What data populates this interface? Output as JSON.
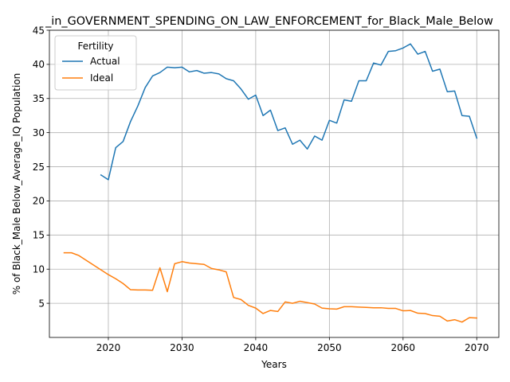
{
  "chart_data": {
    "type": "line",
    "title": "_in_GOVERNMENT_SPENDING_ON_LAW_ENFORCEMENT_for_Black_Male_Below",
    "xlabel": "Years",
    "ylabel": "% of Black_Male Below_Average_IQ Population",
    "xlim": [
      2012,
      2073
    ],
    "ylim": [
      0,
      45
    ],
    "x_ticks": [
      2020,
      2030,
      2040,
      2050,
      2060,
      2070
    ],
    "y_ticks": [
      5,
      10,
      15,
      20,
      25,
      30,
      35,
      40,
      45
    ],
    "grid": true,
    "legend": {
      "title": "Fertility",
      "placement": "upper-left"
    },
    "series": [
      {
        "name": "Actual",
        "color": "#1f77b4",
        "x": [
          2019,
          2020,
          2021,
          2022,
          2023,
          2024,
          2025,
          2026,
          2027,
          2028,
          2029,
          2030,
          2031,
          2032,
          2033,
          2034,
          2035,
          2036,
          2037,
          2038,
          2039,
          2040,
          2041,
          2042,
          2043,
          2044,
          2045,
          2046,
          2047,
          2048,
          2049,
          2050,
          2051,
          2052,
          2053,
          2054,
          2055,
          2056,
          2057,
          2058,
          2059,
          2060,
          2061,
          2062,
          2063,
          2064,
          2065,
          2066,
          2067,
          2068,
          2069,
          2070
        ],
        "values": [
          23.8,
          23.1,
          27.8,
          28.7,
          31.6,
          33.9,
          36.6,
          38.3,
          38.8,
          39.6,
          39.5,
          39.6,
          38.9,
          39.1,
          38.7,
          38.8,
          38.6,
          37.9,
          37.6,
          36.4,
          34.9,
          35.5,
          32.5,
          33.3,
          30.3,
          30.7,
          28.3,
          28.9,
          27.6,
          29.5,
          28.9,
          31.8,
          31.4,
          34.8,
          34.6,
          37.6,
          37.6,
          40.2,
          39.9,
          41.9,
          42.0,
          42.4,
          43.0,
          41.5,
          41.9,
          39.0,
          39.3,
          36.0,
          36.1,
          32.5,
          32.4,
          29.2
        ]
      },
      {
        "name": "Ideal",
        "color": "#ff7f0e",
        "x": [
          2014,
          2015,
          2016,
          2017,
          2018,
          2019,
          2020,
          2021,
          2022,
          2023,
          2024,
          2025,
          2026,
          2027,
          2028,
          2029,
          2030,
          2031,
          2032,
          2033,
          2034,
          2035,
          2036,
          2037,
          2038,
          2039,
          2040,
          2041,
          2042,
          2043,
          2044,
          2045,
          2046,
          2047,
          2048,
          2049,
          2050,
          2051,
          2052,
          2053,
          2054,
          2055,
          2056,
          2057,
          2058,
          2059,
          2060,
          2061,
          2062,
          2063,
          2064,
          2065,
          2066,
          2067,
          2068,
          2069,
          2070
        ],
        "values": [
          12.4,
          12.4,
          12.0,
          11.3,
          10.6,
          9.9,
          9.2,
          8.6,
          7.9,
          7.0,
          6.95,
          6.95,
          6.9,
          10.2,
          6.7,
          10.8,
          11.1,
          10.9,
          10.8,
          10.7,
          10.1,
          9.9,
          9.6,
          5.85,
          5.55,
          4.7,
          4.3,
          3.5,
          3.95,
          3.8,
          5.2,
          5.0,
          5.3,
          5.1,
          4.9,
          4.3,
          4.2,
          4.15,
          4.5,
          4.5,
          4.45,
          4.4,
          4.35,
          4.35,
          4.25,
          4.25,
          3.9,
          3.95,
          3.55,
          3.5,
          3.2,
          3.1,
          2.4,
          2.6,
          2.25,
          2.9,
          2.85
        ]
      }
    ]
  }
}
